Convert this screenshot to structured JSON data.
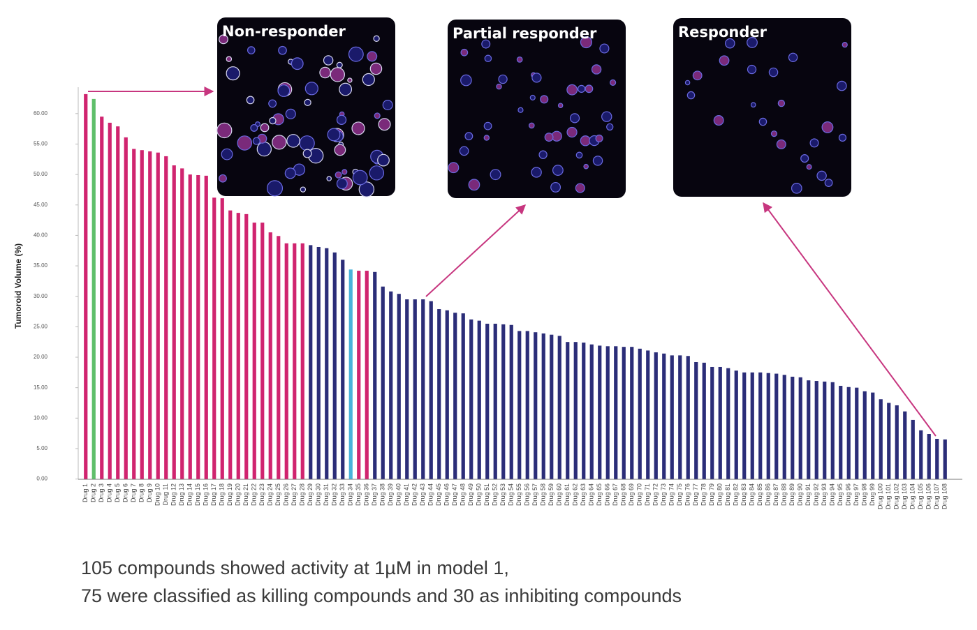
{
  "chart_data": {
    "type": "bar",
    "ylabel": "Tumoroid Volume (%)",
    "categories": [
      "Drug 1",
      "Drug 2",
      "Drug 3",
      "Drug 4",
      "Drug 5",
      "Drug 6",
      "Drug 7",
      "Drug 8",
      "Drug 9",
      "Drug 10",
      "Drug 11",
      "Drug 12",
      "Drug 13",
      "Drug 14",
      "Drug 15",
      "Drug 16",
      "Drug 17",
      "Drug 18",
      "Drug 19",
      "Drug 20",
      "Drug 21",
      "Drug 22",
      "Drug 23",
      "Drug 24",
      "Drug 25",
      "Drug 26",
      "Drug 27",
      "Drug 28",
      "Drug 29",
      "Drug 30",
      "Drug 31",
      "Drug 32",
      "Drug 33",
      "Drug 34",
      "Drug 35",
      "Drug 36",
      "Drug 37",
      "Drug 38",
      "Drug 39",
      "Drug 40",
      "Drug 41",
      "Drug 42",
      "Drug 43",
      "Drug 44",
      "Drug 45",
      "Drug 46",
      "Drug 47",
      "Drug 48",
      "Drug 49",
      "Drug 50",
      "Drug 51",
      "Drug 52",
      "Drug 53",
      "Drug 54",
      "Drug 55",
      "Drug 56",
      "Drug 57",
      "Drug 58",
      "Drug 59",
      "Drug 60",
      "Drug 61",
      "Drug 62",
      "Drug 63",
      "Drug 64",
      "Drug 65",
      "Drug 66",
      "Drug 67",
      "Drug 68",
      "Drug 69",
      "Drug 70",
      "Drug 71",
      "Drug 72",
      "Drug 73",
      "Drug 74",
      "Drug 75",
      "Drug 76",
      "Drug 77",
      "Drug 78",
      "Drug 79",
      "Drug 80",
      "Drug 81",
      "Drug 82",
      "Drug 83",
      "Drug 84",
      "Drug 85",
      "Drug 86",
      "Drug 87",
      "Drug 88",
      "Drug 89",
      "Drug 90",
      "Drug 91",
      "Drug 92",
      "Drug 93",
      "Drug 94",
      "Drug 95",
      "Drug 96",
      "Drug 97",
      "Drug 98",
      "Drug 99",
      "Drug 100",
      "Drug 101",
      "Drug 102",
      "Drug 103",
      "Drug 104",
      "Drug 105",
      "Drug 106",
      "Drug 107",
      "Drug 108"
    ],
    "values": [
      63.2,
      62.4,
      59.5,
      58.5,
      57.9,
      56.1,
      54.2,
      54.0,
      53.8,
      53.6,
      53.0,
      51.5,
      51.0,
      50.0,
      49.9,
      49.8,
      46.2,
      46.1,
      44.1,
      43.7,
      43.5,
      42.1,
      42.1,
      40.5,
      39.9,
      38.7,
      38.7,
      38.7,
      38.4,
      38.1,
      37.9,
      37.2,
      36.0,
      34.4,
      34.2,
      34.2,
      34.0,
      31.6,
      30.8,
      30.4,
      29.5,
      29.5,
      29.5,
      29.2,
      27.9,
      27.7,
      27.3,
      27.2,
      26.2,
      26.0,
      25.5,
      25.5,
      25.4,
      25.3,
      24.3,
      24.3,
      24.1,
      23.9,
      23.7,
      23.5,
      22.5,
      22.5,
      22.4,
      22.1,
      21.9,
      21.8,
      21.8,
      21.7,
      21.7,
      21.4,
      21.1,
      20.8,
      20.6,
      20.3,
      20.3,
      20.2,
      19.2,
      19.1,
      18.4,
      18.4,
      18.2,
      17.8,
      17.5,
      17.5,
      17.5,
      17.4,
      17.3,
      17.1,
      16.8,
      16.7,
      16.2,
      16.1,
      16.0,
      15.9,
      15.3,
      15.1,
      15.0,
      14.4,
      14.2,
      13.1,
      12.5,
      12.1,
      11.1,
      9.7,
      8.0,
      7.4,
      6.6,
      6.5
    ],
    "colors": [
      "#d0246f",
      "#5fbf6a",
      "#d0246f",
      "#d0246f",
      "#d0246f",
      "#d0246f",
      "#d0246f",
      "#d0246f",
      "#d0246f",
      "#d0246f",
      "#d0246f",
      "#d0246f",
      "#d0246f",
      "#d0246f",
      "#d0246f",
      "#d0246f",
      "#d0246f",
      "#d0246f",
      "#d0246f",
      "#d0246f",
      "#d0246f",
      "#d0246f",
      "#d0246f",
      "#d0246f",
      "#d0246f",
      "#d0246f",
      "#d0246f",
      "#d0246f",
      "#2b2d78",
      "#2b2d78",
      "#2b2d78",
      "#2b2d78",
      "#2b2d78",
      "#49b3da",
      "#d0246f",
      "#d0246f",
      "#2b2d78",
      "#2b2d78",
      "#2b2d78",
      "#2b2d78",
      "#2b2d78",
      "#2b2d78",
      "#2b2d78",
      "#2b2d78",
      "#2b2d78",
      "#2b2d78",
      "#2b2d78",
      "#2b2d78",
      "#2b2d78",
      "#2b2d78",
      "#2b2d78",
      "#2b2d78",
      "#2b2d78",
      "#2b2d78",
      "#2b2d78",
      "#2b2d78",
      "#2b2d78",
      "#2b2d78",
      "#2b2d78",
      "#2b2d78",
      "#2b2d78",
      "#2b2d78",
      "#2b2d78",
      "#2b2d78",
      "#2b2d78",
      "#2b2d78",
      "#2b2d78",
      "#2b2d78",
      "#2b2d78",
      "#2b2d78",
      "#2b2d78",
      "#2b2d78",
      "#2b2d78",
      "#2b2d78",
      "#2b2d78",
      "#2b2d78",
      "#2b2d78",
      "#2b2d78",
      "#2b2d78",
      "#2b2d78",
      "#2b2d78",
      "#2b2d78",
      "#2b2d78",
      "#2b2d78",
      "#2b2d78",
      "#2b2d78",
      "#2b2d78",
      "#2b2d78",
      "#2b2d78",
      "#2b2d78",
      "#2b2d78",
      "#2b2d78",
      "#2b2d78",
      "#2b2d78",
      "#2b2d78",
      "#2b2d78",
      "#2b2d78",
      "#2b2d78",
      "#2b2d78",
      "#2b2d78",
      "#2b2d78",
      "#2b2d78",
      "#2b2d78",
      "#2b2d78",
      "#2b2d78",
      "#2b2d78",
      "#2b2d78",
      "#2b2d78"
    ],
    "ylim": [
      0,
      64
    ],
    "yticks": [
      {
        "value": 0,
        "label": "0.00"
      },
      {
        "value": 5,
        "label": "5.00"
      },
      {
        "value": 10,
        "label": "10.00"
      },
      {
        "value": 15,
        "label": "15.00"
      },
      {
        "value": 20,
        "label": "20.00"
      },
      {
        "value": 25,
        "label": "25.00"
      },
      {
        "value": 30,
        "label": "30.00"
      },
      {
        "value": 35,
        "label": "35.00"
      },
      {
        "value": 40,
        "label": "40.00"
      },
      {
        "value": 45,
        "label": "45.00"
      },
      {
        "value": 50,
        "label": "50.00"
      },
      {
        "value": 55,
        "label": "55.00"
      },
      {
        "value": 60,
        "label": "60.00"
      }
    ],
    "grid": false
  },
  "panels": [
    "Non-responder",
    "Partial responder",
    "Responder"
  ],
  "caption": [
    "105 compounds showed activity at 1µM in model 1,",
    "75 were classified as killing compounds and 30 as inhibiting compounds"
  ]
}
